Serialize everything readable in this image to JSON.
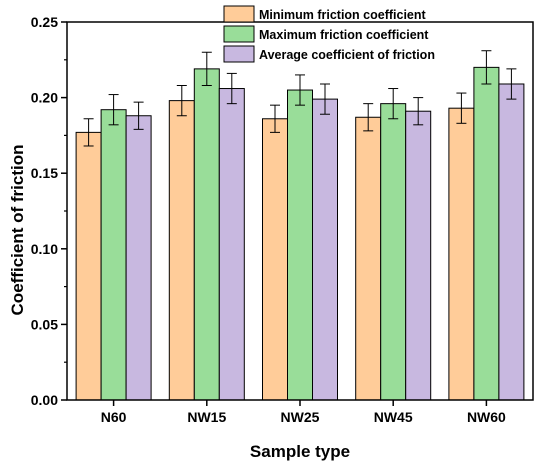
{
  "chart_data": {
    "type": "bar",
    "categories": [
      "N60",
      "NW15",
      "NW25",
      "NW45",
      "NW60"
    ],
    "series": [
      {
        "name": "Minimum friction coefficient",
        "color": "#FFCC99",
        "values": [
          0.177,
          0.198,
          0.186,
          0.187,
          0.193
        ],
        "errors": [
          0.009,
          0.01,
          0.009,
          0.009,
          0.01
        ]
      },
      {
        "name": "Maximum friction coefficient",
        "color": "#99DD99",
        "values": [
          0.192,
          0.219,
          0.205,
          0.196,
          0.22
        ],
        "errors": [
          0.01,
          0.011,
          0.01,
          0.01,
          0.011
        ]
      },
      {
        "name": "Average coefficient of friction",
        "color": "#C8B8E0",
        "values": [
          0.188,
          0.206,
          0.199,
          0.191,
          0.209
        ],
        "errors": [
          0.009,
          0.01,
          0.01,
          0.009,
          0.01
        ]
      }
    ],
    "xlabel": "Sample type",
    "ylabel": "Coefficient of friction",
    "ylim": [
      0,
      0.25
    ],
    "yticks": [
      "0.00",
      "0.05",
      "0.10",
      "0.15",
      "0.20",
      "0.25"
    ],
    "ytick_values": [
      0,
      0.05,
      0.1,
      0.15,
      0.2,
      0.25
    ],
    "grid": false,
    "legend_position": "top-right"
  }
}
